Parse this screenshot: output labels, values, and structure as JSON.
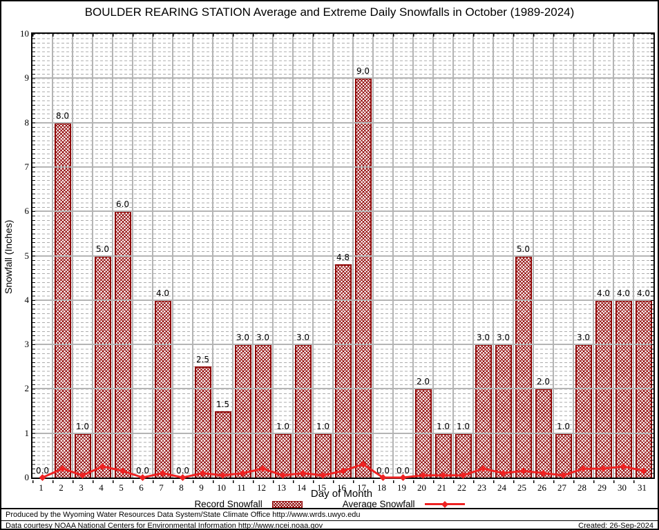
{
  "header": {
    "title": "BOULDER REARING STATION Average and Extreme Daily Snowfalls in October (1989-2024)"
  },
  "chart_data": {
    "type": "bar",
    "title": "BOULDER REARING STATION Average and Extreme Daily Snowfalls in October (1989-2024)",
    "xlabel": "Day of Month",
    "ylabel": "Snowfall (Inches)",
    "ylim": [
      0,
      10
    ],
    "y_major_step": 1,
    "y_minor_step": 0.1,
    "grid": true,
    "legend_position": "bottom",
    "x": [
      1,
      2,
      3,
      4,
      5,
      6,
      7,
      8,
      9,
      10,
      11,
      12,
      13,
      14,
      15,
      16,
      17,
      18,
      19,
      20,
      21,
      22,
      23,
      24,
      25,
      26,
      27,
      28,
      29,
      30,
      31
    ],
    "series": [
      {
        "name": "Record Snowfall",
        "type": "bar",
        "values": [
          0.0,
          8.0,
          1.0,
          5.0,
          6.0,
          0.0,
          4.0,
          0.0,
          2.5,
          1.5,
          3.0,
          3.0,
          1.0,
          3.0,
          1.0,
          4.8,
          9.0,
          0.0,
          0.0,
          2.0,
          1.0,
          1.0,
          3.0,
          3.0,
          5.0,
          2.0,
          1.0,
          3.0,
          4.0,
          4.0,
          4.0
        ],
        "data_labels_visible": true
      },
      {
        "name": "Average Snowfall",
        "type": "line",
        "values": [
          0.0,
          0.2,
          0.05,
          0.25,
          0.15,
          0.0,
          0.1,
          0.0,
          0.1,
          0.05,
          0.1,
          0.2,
          0.05,
          0.1,
          0.05,
          0.15,
          0.3,
          0.0,
          0.0,
          0.05,
          0.05,
          0.05,
          0.2,
          0.1,
          0.15,
          0.1,
          0.05,
          0.2,
          0.2,
          0.25,
          0.15
        ]
      }
    ]
  },
  "legend": {
    "record_label": "Record Snowfall",
    "average_label": "Average Snowfall"
  },
  "footer": {
    "line1": "Produced by the Wyoming Water Resources Data System/State Climate Office http://www.wrds.uwyo.edu",
    "line2": "Data courtesy NOAA National Centers for Environmental Information http://www.ncei.noaa.gov",
    "created": "Created: 26-Sep-2024"
  },
  "colors": {
    "bar": "#8e0000",
    "average_line": "#ee2222",
    "major_grid": "#b4b4b4",
    "minor_grid": "#ababab",
    "axis": "#000000"
  }
}
